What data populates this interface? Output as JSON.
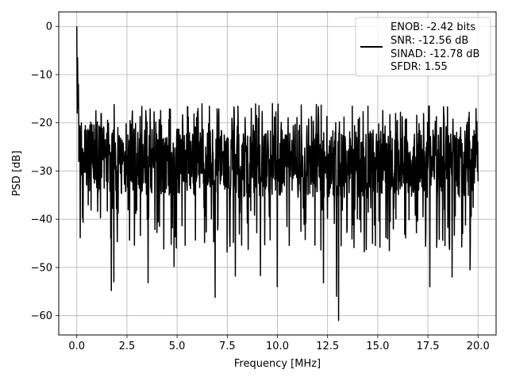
{
  "chart_data": {
    "type": "line",
    "title": "",
    "xlabel": "Frequency [MHz]",
    "ylabel": "PSD [dB]",
    "xlim": [
      -0.9,
      20.9
    ],
    "ylim": [
      -64,
      3
    ],
    "xticks": [
      0,
      2.5,
      5,
      7.5,
      10,
      12.5,
      15,
      17.5,
      20
    ],
    "xtick_labels": [
      "0.0",
      "2.5",
      "5.0",
      "7.5",
      "10.0",
      "12.5",
      "15.0",
      "17.5",
      "20.0"
    ],
    "yticks": [
      0,
      -10,
      -20,
      -30,
      -40,
      -50,
      -60
    ],
    "ytick_labels": [
      "0",
      "−10",
      "−20",
      "−30",
      "−40",
      "−50",
      "−60"
    ],
    "grid": true,
    "legend": {
      "placement": "top-right",
      "lines": [
        "ENOB: -2.42 bits",
        "SNR: -12.56 dB",
        "SINAD: -12.78 dB",
        "SFDR: 1.55"
      ]
    },
    "series": [
      {
        "color": "#000000",
        "x": [
          0.0,
          0.02,
          0.04,
          0.06,
          0.08,
          0.1,
          0.15,
          0.25,
          0.5,
          1.0,
          2.0,
          4.0,
          6.0,
          8.0,
          10.0,
          12.0,
          14.0,
          16.0,
          18.0,
          20.0
        ],
        "y": [
          0.0,
          -18.0,
          -6.5,
          -17.0,
          -12.0,
          -21.0,
          -25.0,
          -26.0,
          -27.0,
          -27.5,
          -28.0,
          -28.0,
          -28.0,
          -28.5,
          -28.5,
          -28.5,
          -28.5,
          -28.5,
          -28.5,
          -28.5
        ],
        "noise": {
          "points": 1400,
          "seed": 7,
          "center_db": -28,
          "upper_peak_db": -16,
          "lower_floor_db": -47,
          "deep_dips": [
            {
              "x": 1.72,
              "y": -54.8
            },
            {
              "x": 1.85,
              "y": -53.0
            },
            {
              "x": 3.55,
              "y": -53.2
            },
            {
              "x": 4.85,
              "y": -49.8
            },
            {
              "x": 6.9,
              "y": -56.2
            },
            {
              "x": 7.9,
              "y": -51.8
            },
            {
              "x": 9.15,
              "y": -51.7
            },
            {
              "x": 10.0,
              "y": -54.0
            },
            {
              "x": 12.3,
              "y": -53.2
            },
            {
              "x": 12.95,
              "y": -56.0
            },
            {
              "x": 13.05,
              "y": -61.0
            },
            {
              "x": 17.6,
              "y": -54.0
            },
            {
              "x": 18.7,
              "y": -52.0
            },
            {
              "x": 19.6,
              "y": -50.5
            }
          ]
        }
      }
    ]
  }
}
